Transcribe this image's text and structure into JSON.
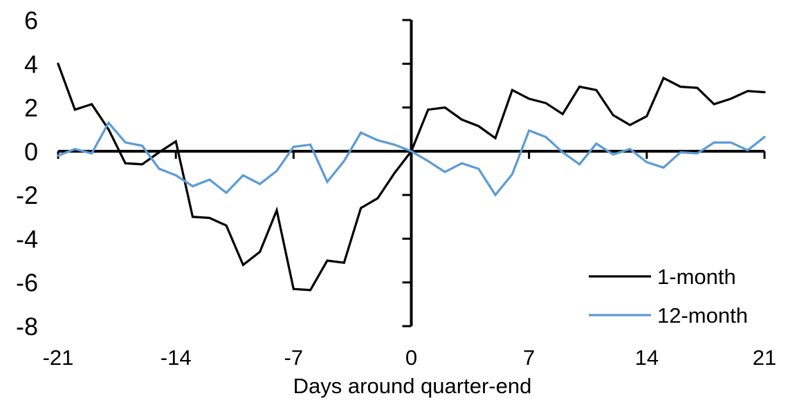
{
  "chart_data": {
    "type": "line",
    "title": "",
    "xlabel": "Days around quarter-end",
    "ylabel": "",
    "xlim": [
      -21,
      21
    ],
    "ylim": [
      -8,
      6
    ],
    "x_ticks": [
      -21,
      -14,
      -7,
      0,
      7,
      14,
      21
    ],
    "y_ticks": [
      6,
      4,
      2,
      0,
      -2,
      -4,
      -6,
      -8
    ],
    "grid": false,
    "legend_position": "inside-bottom-right",
    "axis_color": "#000000",
    "x": [
      -21,
      -20,
      -19,
      -18,
      -17,
      -16,
      -15,
      -14,
      -13,
      -12,
      -11,
      -10,
      -9,
      -8,
      -7,
      -6,
      -5,
      -4,
      -3,
      -2,
      -1,
      0,
      1,
      2,
      3,
      4,
      5,
      6,
      7,
      8,
      9,
      10,
      11,
      12,
      13,
      14,
      15,
      16,
      17,
      18,
      19,
      20,
      21
    ],
    "series": [
      {
        "name": "1-month",
        "color": "#000000",
        "values": [
          4.0,
          1.9,
          2.15,
          1.0,
          -0.55,
          -0.6,
          -0.05,
          0.45,
          -3.0,
          -3.05,
          -3.4,
          -5.2,
          -4.6,
          -2.7,
          -6.3,
          -6.35,
          -5.0,
          -5.1,
          -2.6,
          -2.15,
          -1.0,
          0.0,
          1.9,
          2.0,
          1.45,
          1.15,
          0.6,
          2.8,
          2.4,
          2.2,
          1.7,
          2.95,
          2.8,
          1.65,
          1.2,
          1.6,
          3.35,
          2.95,
          2.9,
          2.15,
          2.4,
          2.75,
          2.7
        ]
      },
      {
        "name": "12-month",
        "color": "#5B9BD5",
        "values": [
          -0.2,
          0.1,
          -0.1,
          1.3,
          0.4,
          0.25,
          -0.8,
          -1.1,
          -1.6,
          -1.3,
          -1.9,
          -1.1,
          -1.5,
          -0.9,
          0.2,
          0.3,
          -1.4,
          -0.45,
          0.85,
          0.5,
          0.3,
          0.0,
          -0.45,
          -0.95,
          -0.55,
          -0.8,
          -2.0,
          -1.05,
          0.95,
          0.65,
          -0.05,
          -0.6,
          0.35,
          -0.15,
          0.1,
          -0.5,
          -0.75,
          -0.05,
          -0.1,
          0.4,
          0.4,
          0.05,
          0.65
        ]
      }
    ]
  }
}
